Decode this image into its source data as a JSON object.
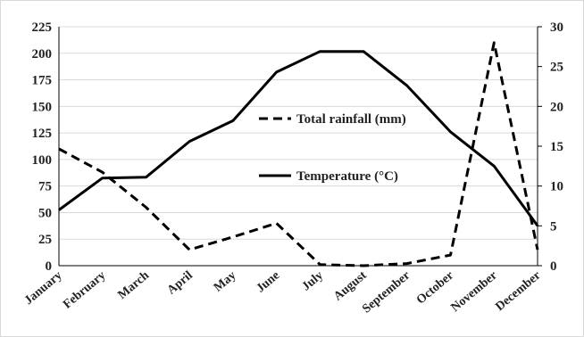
{
  "chart_data": {
    "type": "line",
    "categories": [
      "January",
      "February",
      "March",
      "April",
      "May",
      "June",
      "July",
      "August",
      "September",
      "October",
      "November",
      "December"
    ],
    "series": [
      {
        "name": "Total rainfall (mm)",
        "axis": "left",
        "style": "dashed",
        "color": "#000000",
        "values": [
          110,
          88,
          55,
          15,
          27,
          40,
          1,
          0,
          2,
          10,
          210,
          15
        ]
      },
      {
        "name": "Temperature (°C)",
        "axis": "right",
        "style": "solid",
        "color": "#000000",
        "values": [
          7,
          11,
          11.1,
          15.6,
          18.2,
          24.3,
          26.9,
          26.9,
          22.6,
          16.8,
          12.5,
          5
        ]
      }
    ],
    "y_left": {
      "range": [
        0,
        225
      ],
      "ticks": [
        "0",
        "25",
        "50",
        "75",
        "100",
        "125",
        "150",
        "175",
        "200",
        "225"
      ]
    },
    "y_right": {
      "range": [
        0,
        30
      ],
      "ticks": [
        "0",
        "5",
        "10",
        "15",
        "20",
        "25",
        "30"
      ]
    },
    "grid": true,
    "legend": "center-right"
  }
}
